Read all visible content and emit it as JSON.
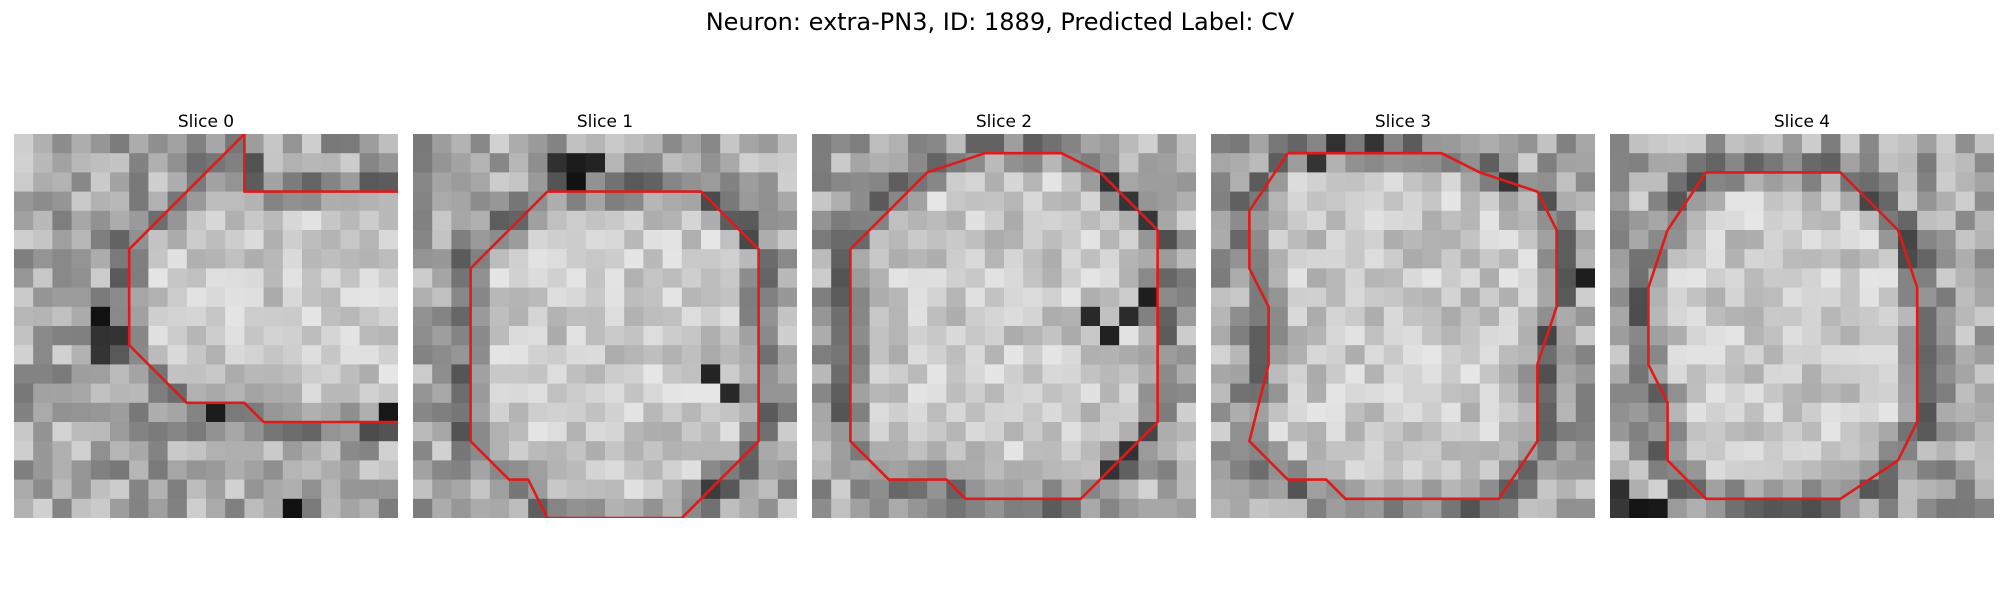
{
  "figure": {
    "title": "Neuron: extra-PN3, ID: 1889, Predicted Label: CV"
  },
  "colors": {
    "contour": "#e01a1a",
    "background": "#ffffff"
  },
  "slices": [
    {
      "title": "Slice 0",
      "contour": [
        [
          12,
          0
        ],
        [
          6,
          6
        ],
        [
          6,
          11
        ],
        [
          9,
          14
        ],
        [
          12,
          14
        ],
        [
          13,
          15
        ],
        [
          20,
          15
        ],
        [
          23,
          12
        ],
        [
          23,
          6
        ],
        [
          20,
          3
        ],
        [
          17,
          3
        ],
        [
          12,
          3
        ],
        [
          12,
          0
        ]
      ],
      "dark": [
        [
          4,
          11
        ],
        [
          5,
          10
        ],
        [
          4,
          10
        ],
        [
          10,
          14
        ],
        [
          14,
          19
        ],
        [
          19,
          14
        ],
        [
          4,
          9
        ]
      ]
    },
    {
      "title": "Slice 1",
      "contour": [
        [
          7,
          3
        ],
        [
          6,
          4
        ],
        [
          3,
          7
        ],
        [
          3,
          13
        ],
        [
          3,
          16
        ],
        [
          5,
          18
        ],
        [
          6,
          18
        ],
        [
          7,
          20
        ],
        [
          14,
          20
        ],
        [
          18,
          16
        ],
        [
          18,
          11
        ],
        [
          18,
          6
        ],
        [
          15,
          3
        ],
        [
          12,
          3
        ],
        [
          7,
          3
        ]
      ],
      "dark": [
        [
          8,
          1
        ],
        [
          8,
          2
        ],
        [
          9,
          1
        ],
        [
          7,
          1
        ],
        [
          15,
          12
        ],
        [
          16,
          13
        ]
      ]
    },
    {
      "title": "Slice 2",
      "contour": [
        [
          3,
          5
        ],
        [
          2,
          6
        ],
        [
          2,
          12
        ],
        [
          2,
          16
        ],
        [
          4,
          18
        ],
        [
          5,
          18
        ],
        [
          7,
          18
        ],
        [
          8,
          19
        ],
        [
          14,
          19
        ],
        [
          18,
          15
        ],
        [
          18,
          11
        ],
        [
          18,
          5
        ],
        [
          15,
          2
        ],
        [
          13,
          1
        ],
        [
          9,
          1
        ],
        [
          6,
          2
        ],
        [
          5,
          3
        ],
        [
          3,
          5
        ]
      ],
      "dark": [
        [
          14,
          9
        ],
        [
          15,
          10
        ],
        [
          16,
          9
        ],
        [
          17,
          8
        ]
      ]
    },
    {
      "title": "Slice 3",
      "contour": [
        [
          4,
          1
        ],
        [
          2,
          4
        ],
        [
          2,
          7
        ],
        [
          3,
          9
        ],
        [
          3,
          12
        ],
        [
          2,
          16
        ],
        [
          4,
          18
        ],
        [
          6,
          18
        ],
        [
          7,
          19
        ],
        [
          15,
          19
        ],
        [
          17,
          16
        ],
        [
          17,
          12
        ],
        [
          18,
          9
        ],
        [
          18,
          5
        ],
        [
          17,
          3
        ],
        [
          14,
          2
        ],
        [
          12,
          1
        ],
        [
          8,
          1
        ],
        [
          6,
          1
        ],
        [
          4,
          1
        ]
      ],
      "dark": [
        [
          5,
          1
        ],
        [
          6,
          0
        ],
        [
          8,
          0
        ],
        [
          19,
          7
        ],
        [
          20,
          8
        ]
      ]
    },
    {
      "title": "Slice 4",
      "contour": [
        [
          3,
          5
        ],
        [
          2,
          8
        ],
        [
          2,
          10
        ],
        [
          2,
          12
        ],
        [
          3,
          14
        ],
        [
          3,
          17
        ],
        [
          5,
          19
        ],
        [
          8,
          19
        ],
        [
          12,
          19
        ],
        [
          15,
          17
        ],
        [
          16,
          15
        ],
        [
          16,
          8
        ],
        [
          15,
          5
        ],
        [
          12,
          2
        ],
        [
          8,
          2
        ],
        [
          5,
          2
        ],
        [
          3,
          5
        ]
      ],
      "dark": [
        [
          0,
          19
        ],
        [
          1,
          19
        ],
        [
          2,
          19
        ],
        [
          0,
          18
        ]
      ]
    }
  ]
}
